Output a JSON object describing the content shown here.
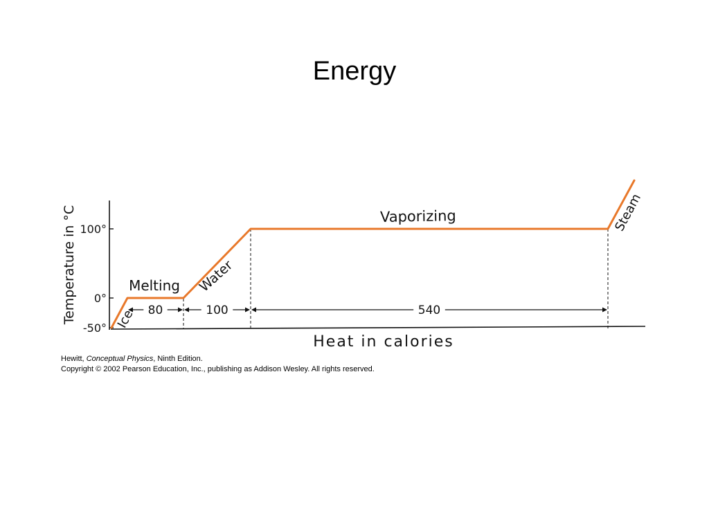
{
  "slide": {
    "title": "Energy"
  },
  "chart_data": {
    "type": "line",
    "xlabel": "Heat in calories",
    "ylabel": "Temperature in °C",
    "y_ticks": [
      "100°",
      "0°",
      "-50°"
    ],
    "y_tick_values": [
      100,
      0,
      -50
    ],
    "points": [
      {
        "x": 0,
        "y": -50
      },
      {
        "x": 25,
        "y": 0
      },
      {
        "x": 105,
        "y": 0
      },
      {
        "x": 205,
        "y": 100
      },
      {
        "x": 745,
        "y": 100
      },
      {
        "x": 785,
        "y": 170
      }
    ],
    "segments": [
      {
        "label": "Ice",
        "from": 0,
        "to": 25
      },
      {
        "label": "Melting",
        "from": 25,
        "to": 105
      },
      {
        "label": "Water",
        "from": 105,
        "to": 205
      },
      {
        "label": "Vaporizing",
        "from": 205,
        "to": 745
      },
      {
        "label": "Steam",
        "from": 745,
        "to": 785
      }
    ],
    "intervals": [
      {
        "label": "80",
        "from": 25,
        "to": 105
      },
      {
        "label": "100",
        "from": 105,
        "to": 205
      },
      {
        "label": "540",
        "from": 205,
        "to": 745
      }
    ],
    "line_color": "#e8782a",
    "grid": false
  },
  "caption": {
    "line1_author": "Hewitt, ",
    "line1_book": "Conceptual Physics",
    "line1_edition": ", Ninth Edition.",
    "line2": "Copyright © 2002 Pearson Education, Inc., publishing as Addison Wesley.  All rights reserved."
  }
}
